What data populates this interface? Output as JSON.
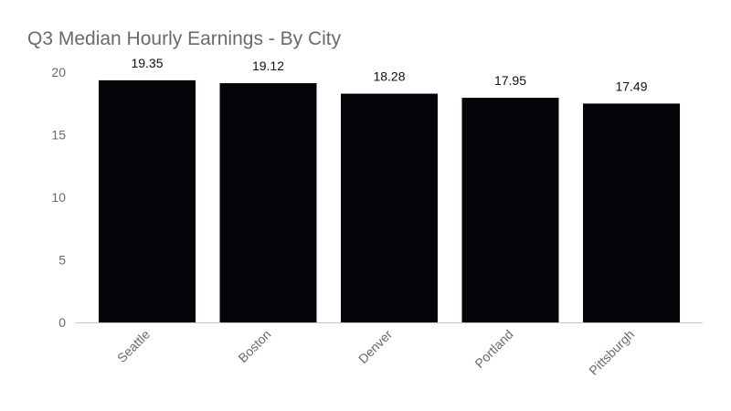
{
  "chart_data": {
    "type": "bar",
    "title": "Q3 Median Hourly Earnings - By City",
    "xlabel": "",
    "ylabel": "",
    "categories": [
      "Seattle",
      "Boston",
      "Denver",
      "Portland",
      "Pittsburgh"
    ],
    "values": [
      19.35,
      19.12,
      18.28,
      17.95,
      17.49
    ],
    "data_labels": [
      "19.35",
      "19.12",
      "18.28",
      "17.95",
      "17.49"
    ],
    "yticks": [
      0,
      5,
      10,
      15,
      20
    ],
    "ylim": [
      0,
      20
    ],
    "grid": false,
    "legend": "none",
    "colors": {
      "bar": "#050308",
      "axis": "#c8c8c8",
      "tick_text": "#6a6a6a",
      "title_text": "#6a6a6a",
      "data_label_text": "#111111"
    }
  }
}
